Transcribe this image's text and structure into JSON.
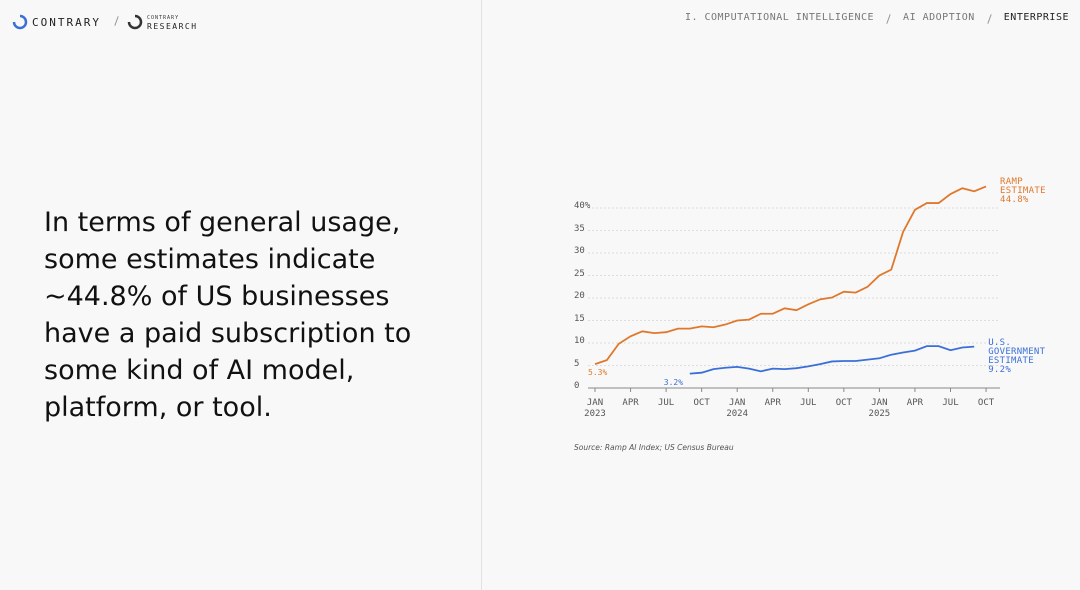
{
  "header": {
    "brand": "CONTRARY",
    "sub_brand_top": "CONTRARY",
    "sub_brand": "RESEARCH",
    "breadcrumb": [
      "I. COMPUTATIONAL INTELLIGENCE",
      "AI ADOPTION",
      "ENTERPRISE"
    ]
  },
  "body": {
    "text": "In terms of general usage, some estimates indicate ~44.8% of US businesses have a paid subscription to some kind of AI model, platform, or tool."
  },
  "chart_data": {
    "type": "line",
    "categories": [
      "JAN\n2023",
      null,
      null,
      "APR",
      null,
      null,
      "JUL",
      null,
      null,
      "OCT",
      null,
      null,
      "JAN\n2024",
      null,
      null,
      "APR",
      null,
      null,
      "JUL",
      null,
      null,
      "OCT",
      null,
      null,
      "JAN\n2025",
      null,
      null,
      "APR",
      null,
      null,
      "JUL",
      null,
      null,
      "OCT"
    ],
    "series": [
      {
        "name": "RAMP ESTIMATE",
        "color": "#e0782c",
        "values": [
          5.3,
          6.2,
          9.8,
          11.5,
          12.6,
          12.2,
          12.4,
          13.2,
          13.2,
          13.7,
          13.5,
          14.1,
          15.0,
          15.2,
          16.5,
          16.5,
          17.7,
          17.3,
          18.6,
          19.7,
          20.1,
          21.4,
          21.2,
          22.5,
          25.0,
          26.3,
          34.7,
          39.6,
          41.1,
          41.1,
          43.1,
          44.4,
          43.7,
          44.8
        ],
        "value_labels": [
          "5.3%",
          null,
          null,
          null,
          null,
          null,
          null,
          null,
          null,
          null,
          null,
          null,
          null,
          null,
          null,
          null,
          null,
          null,
          null,
          null,
          null,
          null,
          null,
          null,
          null,
          null,
          null,
          null,
          null,
          null,
          null,
          null,
          null,
          "44.8%"
        ]
      },
      {
        "name": "U.S. GOVERNMENT ESTIMATE",
        "color": "#3b6fd8",
        "values": [
          null,
          null,
          null,
          null,
          null,
          null,
          null,
          null,
          3.2,
          3.4,
          4.2,
          4.5,
          4.7,
          4.3,
          3.7,
          4.3,
          4.2,
          4.4,
          4.8,
          5.3,
          5.9,
          6.0,
          6.0,
          6.3,
          6.6,
          7.4,
          7.9,
          8.3,
          9.3,
          9.3,
          8.4,
          9.0,
          9.2,
          null
        ],
        "value_labels": [
          null,
          null,
          null,
          null,
          null,
          null,
          null,
          null,
          "3.2%",
          null,
          null,
          null,
          null,
          null,
          null,
          null,
          null,
          null,
          null,
          null,
          null,
          null,
          null,
          null,
          null,
          null,
          null,
          null,
          null,
          null,
          null,
          null,
          "9.2%",
          null
        ]
      }
    ],
    "ylim": [
      0,
      45
    ],
    "yticks": [
      0,
      5,
      10,
      15,
      20,
      25,
      30,
      35,
      {
        "value": 40,
        "label": "40%"
      }
    ],
    "grid": true,
    "source": "Source: Ramp AI Index; US Census Bureau"
  }
}
